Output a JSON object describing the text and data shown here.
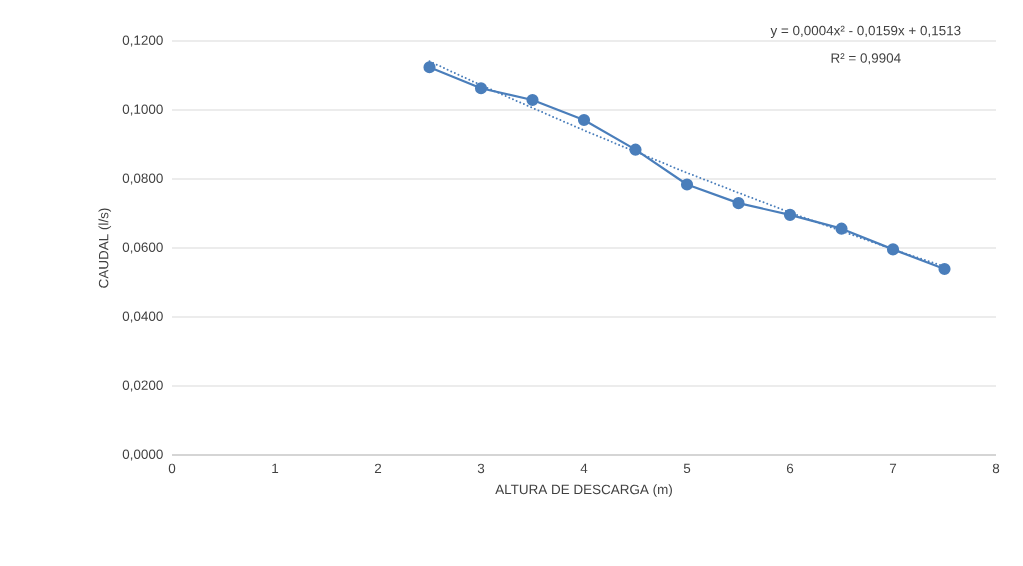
{
  "chart_data": {
    "type": "line",
    "xlabel": "ALTURA DE DESCARGA (m)",
    "ylabel": "CAUDAL (l/s)",
    "x": [
      2.5,
      3,
      3.5,
      4,
      4.5,
      5,
      5.5,
      6,
      6.5,
      7,
      7.5
    ],
    "series": [
      {
        "color": "#4a7ebb",
        "marker": "circle",
        "line_style": "solid",
        "values": [
          0.1124,
          0.1063,
          0.1029,
          0.0971,
          0.0885,
          0.0784,
          0.073,
          0.0696,
          0.0656,
          0.0596,
          0.0539
        ]
      },
      {
        "type": "line",
        "color": "#4a7ebb",
        "marker": "none",
        "line_style": "dotted",
        "values": [
          0.1141,
          0.1072,
          0.1006,
          0.0941,
          0.0879,
          0.0818,
          0.076,
          0.0703,
          0.0649,
          0.0596,
          0.0546
        ]
      }
    ],
    "xlim": [
      0,
      8
    ],
    "xticks": [
      0,
      1,
      2,
      3,
      4,
      5,
      6,
      7,
      8
    ],
    "ylim": [
      0,
      0.12
    ],
    "yticks": [
      {
        "value": 0,
        "label": "0,0000"
      },
      {
        "value": 0.02,
        "label": "0,0200"
      },
      {
        "value": 0.04,
        "label": "0,0400"
      },
      {
        "value": 0.06,
        "label": "0,0600"
      },
      {
        "value": 0.08,
        "label": "0,0800"
      },
      {
        "value": 0.1,
        "label": "0,1000"
      },
      {
        "value": 0.12,
        "label": "0,1200"
      }
    ],
    "grid": "y",
    "annotations": [
      "y = 0,0004x² - 0,0159x + 0,1513",
      "R² = 0,9904"
    ]
  }
}
